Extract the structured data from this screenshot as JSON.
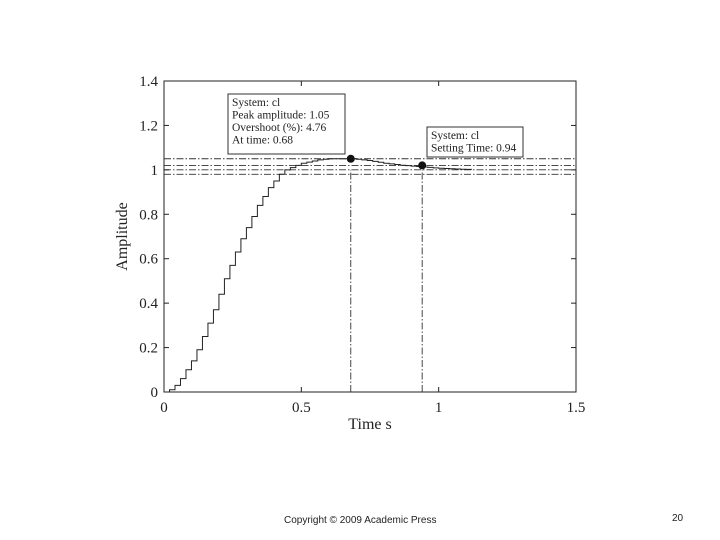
{
  "chart_data": {
    "type": "line",
    "title": "",
    "xlabel": "Time s",
    "ylabel": "Amplitude",
    "xlim": [
      0,
      1.5
    ],
    "ylim": [
      0,
      1.4
    ],
    "x_ticks": [
      0,
      0.5,
      1,
      1.5
    ],
    "x_tick_labels": [
      "0",
      "0.5",
      "1",
      "1.5"
    ],
    "y_ticks": [
      0,
      0.2,
      0.4,
      0.6,
      0.8,
      1,
      1.2,
      1.4
    ],
    "y_tick_labels": [
      "0",
      "0.2",
      "0.4",
      "0.6",
      "0.8",
      "1",
      "1.2",
      "1.4"
    ],
    "grid": false,
    "series": [
      {
        "style": "staircase",
        "color": "#222222",
        "x": [
          0,
          0.02,
          0.04,
          0.06,
          0.08,
          0.1,
          0.12,
          0.14,
          0.16,
          0.18,
          0.2,
          0.22,
          0.24,
          0.26,
          0.28,
          0.3,
          0.32,
          0.34,
          0.36,
          0.38,
          0.4,
          0.42,
          0.44,
          0.46,
          0.48,
          0.5,
          0.52,
          0.54,
          0.56,
          0.58,
          0.6,
          0.62,
          0.64,
          0.66,
          0.68,
          0.7,
          0.72,
          0.74,
          0.76,
          0.78,
          0.8,
          0.82,
          0.84,
          0.86,
          0.88,
          0.9,
          0.92,
          0.94,
          0.96,
          0.98,
          1.0,
          1.02,
          1.04,
          1.06,
          1.08,
          1.1,
          1.12
        ],
        "y": [
          0,
          0.01,
          0.03,
          0.06,
          0.1,
          0.14,
          0.19,
          0.25,
          0.31,
          0.37,
          0.44,
          0.51,
          0.57,
          0.63,
          0.69,
          0.74,
          0.79,
          0.84,
          0.88,
          0.92,
          0.95,
          0.98,
          1.0,
          1.01,
          1.02,
          1.03,
          1.035,
          1.04,
          1.045,
          1.048,
          1.05,
          1.05,
          1.05,
          1.05,
          1.05,
          1.048,
          1.045,
          1.042,
          1.038,
          1.034,
          1.03,
          1.027,
          1.024,
          1.021,
          1.019,
          1.017,
          1.015,
          1.013,
          1.011,
          1.009,
          1.007,
          1.006,
          1.005,
          1.004,
          1.003,
          1.002,
          1.001
        ]
      }
    ],
    "reference_lines": {
      "horizontal": [
        1.05,
        1.02,
        1.0,
        0.98
      ],
      "vertical": [
        0.68,
        0.94
      ],
      "style": "dash-dot"
    },
    "markers": [
      {
        "x": 0.68,
        "y": 1.05
      },
      {
        "x": 0.94,
        "y": 1.02
      }
    ],
    "annotations": [
      {
        "lines": [
          "System: cl",
          "Peak amplitude: 1.05",
          "Overshoot (%): 4.76",
          "At time: 0.68"
        ]
      },
      {
        "lines": [
          "System: cl",
          "Setting Time: 0.94"
        ]
      }
    ]
  },
  "footer": {
    "copyright": "Copyright © 2009 Academic Press",
    "page_number": "20"
  }
}
